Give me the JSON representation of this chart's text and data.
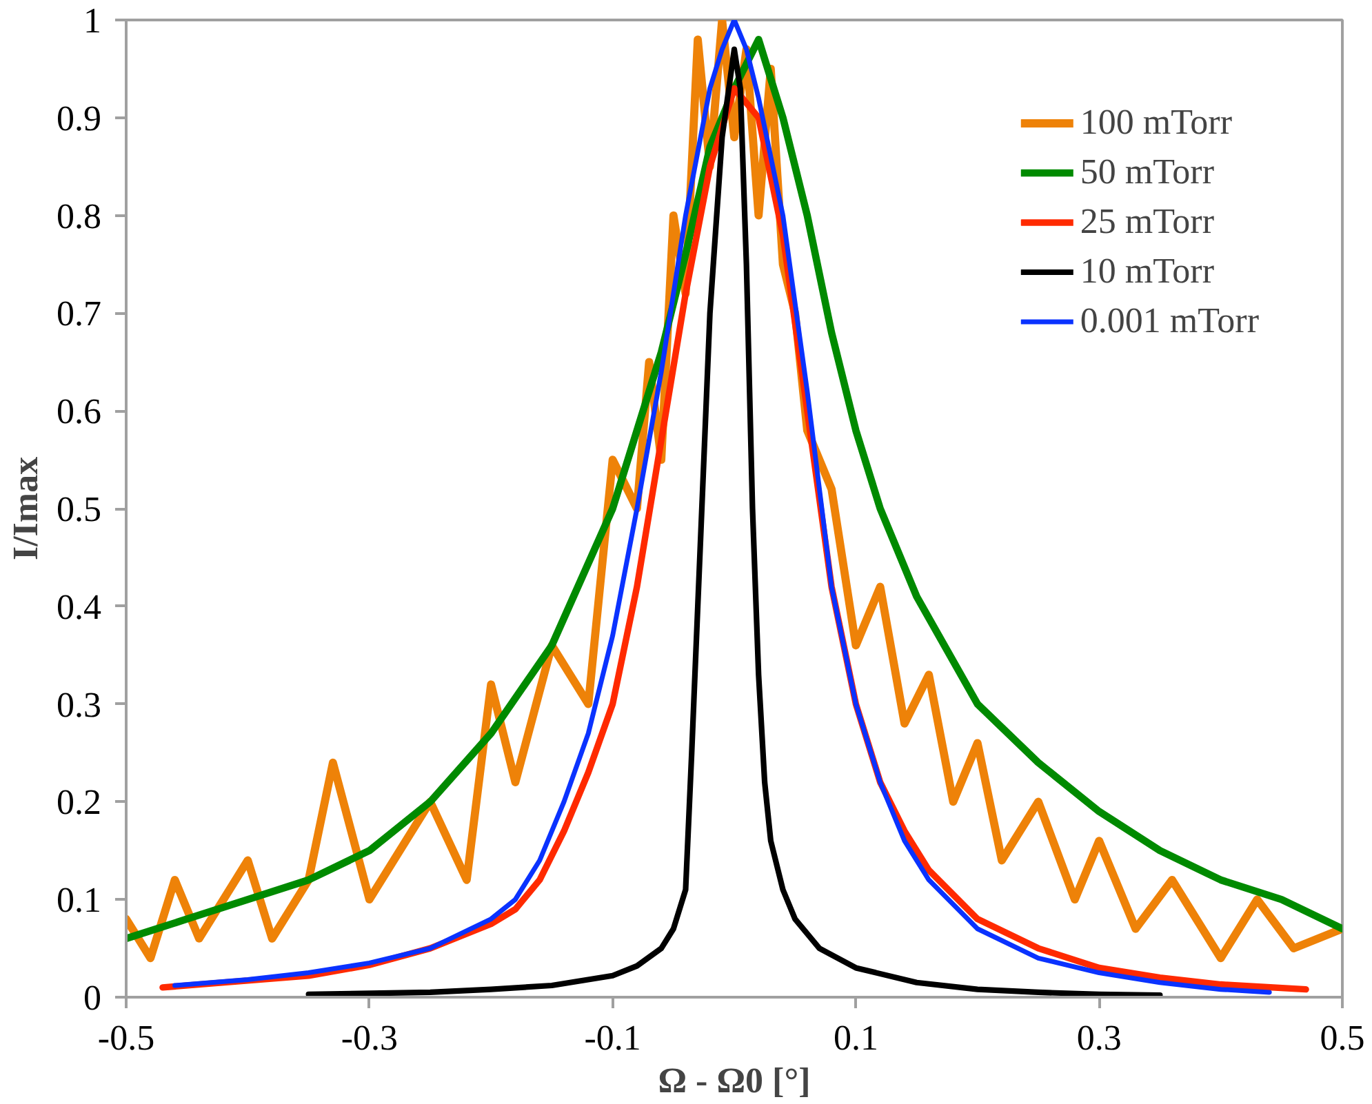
{
  "chart_data": {
    "type": "line",
    "xlabel": "Ω - Ω0 [°]",
    "ylabel": "I/Imax",
    "xlim": [
      -0.5,
      0.5
    ],
    "xticks": [
      -0.5,
      -0.3,
      -0.1,
      0.1,
      0.3,
      0.5
    ],
    "ylim": [
      0,
      1
    ],
    "yticks": [
      0,
      0.1,
      0.2,
      0.3,
      0.4,
      0.5,
      0.6,
      0.7,
      0.8,
      0.9,
      1
    ],
    "grid": false,
    "legend": "top right",
    "marker": "none",
    "line_style": "solid",
    "series": [
      {
        "name": "100 mTorr",
        "color": "#ee8208",
        "x": [
          -0.5,
          -0.48,
          -0.46,
          -0.44,
          -0.4,
          -0.38,
          -0.35,
          -0.33,
          -0.3,
          -0.25,
          -0.22,
          -0.2,
          -0.18,
          -0.15,
          -0.12,
          -0.1,
          -0.08,
          -0.07,
          -0.06,
          -0.05,
          -0.04,
          -0.03,
          -0.02,
          -0.01,
          0,
          0.01,
          0.02,
          0.03,
          0.04,
          0.05,
          0.06,
          0.08,
          0.1,
          0.12,
          0.14,
          0.16,
          0.18,
          0.2,
          0.22,
          0.25,
          0.28,
          0.3,
          0.33,
          0.36,
          0.4,
          0.43,
          0.46,
          0.5
        ],
        "values": [
          0.08,
          0.04,
          0.12,
          0.06,
          0.14,
          0.06,
          0.12,
          0.24,
          0.1,
          0.2,
          0.12,
          0.32,
          0.22,
          0.36,
          0.3,
          0.55,
          0.5,
          0.65,
          0.55,
          0.8,
          0.72,
          0.98,
          0.85,
          1.0,
          0.88,
          0.97,
          0.8,
          0.95,
          0.75,
          0.7,
          0.58,
          0.52,
          0.36,
          0.42,
          0.28,
          0.33,
          0.2,
          0.26,
          0.14,
          0.2,
          0.1,
          0.16,
          0.07,
          0.12,
          0.04,
          0.1,
          0.05,
          0.07
        ]
      },
      {
        "name": "50 mTorr",
        "color": "#008a00",
        "x": [
          -0.5,
          -0.45,
          -0.4,
          -0.35,
          -0.3,
          -0.25,
          -0.2,
          -0.15,
          -0.1,
          -0.08,
          -0.06,
          -0.04,
          -0.02,
          0,
          0.02,
          0.04,
          0.06,
          0.08,
          0.1,
          0.12,
          0.15,
          0.2,
          0.25,
          0.3,
          0.35,
          0.4,
          0.45,
          0.5
        ],
        "values": [
          0.06,
          0.08,
          0.1,
          0.12,
          0.15,
          0.2,
          0.27,
          0.36,
          0.5,
          0.58,
          0.66,
          0.76,
          0.87,
          0.93,
          0.98,
          0.9,
          0.8,
          0.68,
          0.58,
          0.5,
          0.41,
          0.3,
          0.24,
          0.19,
          0.15,
          0.12,
          0.1,
          0.07
        ]
      },
      {
        "name": "25 mTorr",
        "color": "#ff2a00",
        "x": [
          -0.47,
          -0.4,
          -0.35,
          -0.3,
          -0.25,
          -0.2,
          -0.18,
          -0.16,
          -0.14,
          -0.12,
          -0.1,
          -0.08,
          -0.06,
          -0.04,
          -0.02,
          0,
          0.02,
          0.04,
          0.06,
          0.08,
          0.1,
          0.12,
          0.14,
          0.16,
          0.2,
          0.25,
          0.3,
          0.35,
          0.4,
          0.47
        ],
        "values": [
          0.01,
          0.017,
          0.022,
          0.033,
          0.05,
          0.075,
          0.09,
          0.12,
          0.17,
          0.23,
          0.3,
          0.42,
          0.57,
          0.72,
          0.85,
          0.93,
          0.9,
          0.78,
          0.6,
          0.42,
          0.3,
          0.22,
          0.17,
          0.13,
          0.08,
          0.05,
          0.03,
          0.02,
          0.013,
          0.008
        ]
      },
      {
        "name": "10 mTorr",
        "color": "#000000",
        "x": [
          -0.35,
          -0.25,
          -0.2,
          -0.15,
          -0.1,
          -0.08,
          -0.06,
          -0.05,
          -0.04,
          -0.035,
          -0.03,
          -0.025,
          -0.02,
          -0.01,
          0,
          0.005,
          0.01,
          0.015,
          0.02,
          0.025,
          0.03,
          0.04,
          0.05,
          0.07,
          0.1,
          0.15,
          0.2,
          0.25,
          0.3,
          0.35
        ],
        "values": [
          0.003,
          0.005,
          0.008,
          0.012,
          0.022,
          0.032,
          0.05,
          0.07,
          0.11,
          0.25,
          0.4,
          0.55,
          0.7,
          0.88,
          0.97,
          0.93,
          0.75,
          0.5,
          0.33,
          0.22,
          0.16,
          0.11,
          0.08,
          0.05,
          0.03,
          0.015,
          0.008,
          0.005,
          0.003,
          0.002
        ]
      },
      {
        "name": "0.001 mTorr",
        "color": "#0a32ff",
        "x": [
          -0.46,
          -0.4,
          -0.35,
          -0.3,
          -0.25,
          -0.2,
          -0.18,
          -0.16,
          -0.14,
          -0.12,
          -0.1,
          -0.08,
          -0.06,
          -0.04,
          -0.02,
          -0.01,
          0,
          0.01,
          0.02,
          0.04,
          0.06,
          0.08,
          0.1,
          0.12,
          0.14,
          0.16,
          0.2,
          0.25,
          0.3,
          0.35,
          0.4,
          0.44
        ],
        "values": [
          0.012,
          0.018,
          0.025,
          0.035,
          0.05,
          0.08,
          0.1,
          0.14,
          0.2,
          0.27,
          0.37,
          0.5,
          0.64,
          0.8,
          0.93,
          0.97,
          1.0,
          0.97,
          0.92,
          0.8,
          0.62,
          0.42,
          0.3,
          0.22,
          0.16,
          0.12,
          0.07,
          0.04,
          0.025,
          0.015,
          0.008,
          0.005
        ]
      }
    ]
  }
}
